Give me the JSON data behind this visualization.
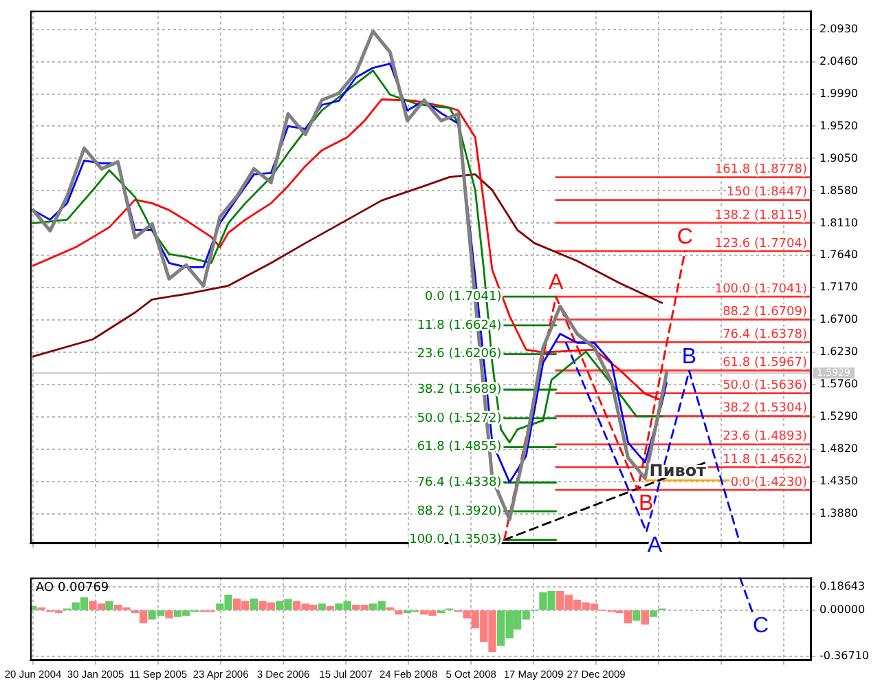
{
  "chart_data": [
    {
      "type": "line",
      "marker": "none",
      "grid": true,
      "tick_labels": "y",
      "xlim": [
        "2004-06-10",
        "2012-02-05"
      ],
      "xticks": [
        {
          "value": "2004-06-20",
          "label": null
        },
        {
          "value": "2005-01-30",
          "label": null
        },
        {
          "value": "2005-09-11",
          "label": null
        },
        {
          "value": "2006-04-23",
          "label": null
        },
        {
          "value": "2006-12-03",
          "label": null
        },
        {
          "value": "2007-07-15",
          "label": null
        },
        {
          "value": "2008-02-24",
          "label": null
        },
        {
          "value": "2008-10-05",
          "label": null
        },
        {
          "value": "2009-05-17",
          "label": null
        },
        {
          "value": "2009-12-27",
          "label": null
        },
        {
          "value": "2010-08-08",
          "label": null
        },
        {
          "value": "2011-03-20",
          "label": null
        },
        {
          "value": "2011-10-30",
          "label": null
        }
      ],
      "ylim": [
        1.345,
        2.12
      ],
      "yticks": [
        {
          "value": 2.093,
          "label": "2.0930"
        },
        {
          "value": 2.046,
          "label": "2.0460"
        },
        {
          "value": 1.999,
          "label": "1.9990"
        },
        {
          "value": 1.952,
          "label": "1.9520"
        },
        {
          "value": 1.905,
          "label": "1.9050"
        },
        {
          "value": 1.858,
          "label": "1.8580"
        },
        {
          "value": 1.811,
          "label": "1.8110"
        },
        {
          "value": 1.764,
          "label": "1.7640"
        },
        {
          "value": 1.717,
          "label": "1.7170"
        },
        {
          "value": 1.67,
          "label": "1.6700"
        },
        {
          "value": 1.623,
          "label": "1.6230"
        },
        {
          "value": 1.576,
          "label": "1.5760"
        },
        {
          "value": 1.529,
          "label": "1.5290"
        },
        {
          "value": 1.482,
          "label": "1.4820"
        },
        {
          "value": 1.435,
          "label": "1.4350"
        },
        {
          "value": 1.388,
          "label": "1.3880"
        }
      ],
      "x": [
        "2004-06-20",
        "2004-08-20",
        "2004-10-20",
        "2004-12-20",
        "2005-02-20",
        "2005-04-20",
        "2005-06-20",
        "2005-08-20",
        "2005-10-20",
        "2005-12-20",
        "2006-02-20",
        "2006-04-20",
        "2006-06-20",
        "2006-08-20",
        "2006-10-20",
        "2006-12-20",
        "2007-02-20",
        "2007-04-20",
        "2007-06-20",
        "2007-08-20",
        "2007-10-20",
        "2007-12-20",
        "2008-02-20",
        "2008-04-20",
        "2008-06-20",
        "2008-08-20",
        "2008-10-20",
        "2008-12-20",
        "2009-02-20",
        "2009-04-20",
        "2009-06-20",
        "2009-08-20",
        "2009-10-20",
        "2009-12-20",
        "2010-02-20",
        "2010-04-20",
        "2010-06-20",
        "2010-08-20",
        "2010-09-05"
      ],
      "series": [
        {
          "color": "#808080",
          "values": [
            1.83,
            1.8,
            1.85,
            1.92,
            1.89,
            1.9,
            1.79,
            1.81,
            1.73,
            1.75,
            1.72,
            1.82,
            1.85,
            1.89,
            1.87,
            1.97,
            1.94,
            1.99,
            2.0,
            2.03,
            2.09,
            2.06,
            1.96,
            1.99,
            1.96,
            1.97,
            1.7,
            1.44,
            1.38,
            1.49,
            1.63,
            1.69,
            1.65,
            1.63,
            1.58,
            1.47,
            1.44,
            1.56,
            1.5929
          ]
        },
        {
          "color": "#0000ff",
          "values": [
            1.83,
            1.816,
            1.84,
            1.902,
            1.898,
            1.898,
            1.801,
            1.801,
            1.753,
            1.747,
            1.747,
            1.811,
            1.847,
            1.882,
            1.884,
            1.952,
            1.948,
            1.983,
            1.989,
            2.023,
            2.037,
            2.043,
            1.975,
            1.989,
            1.971,
            1.956,
            1.733,
            1.492,
            1.434,
            1.472,
            1.608,
            1.65,
            1.637,
            1.637,
            1.608,
            1.492,
            1.463,
            1.55,
            1.579
          ]
        },
        {
          "color": "#008000",
          "x": [
            "2004-06-20",
            "2004-10-20",
            "2005-01-20",
            "2005-03-20",
            "2005-06-20",
            "2005-08-20",
            "2005-10-20",
            "2005-12-20",
            "2006-03-20",
            "2006-05-20",
            "2006-07-20",
            "2006-10-20",
            "2006-12-20",
            "2007-02-20",
            "2007-04-20",
            "2007-07-20",
            "2007-10-20",
            "2007-12-20",
            "2008-03-20",
            "2008-05-20",
            "2008-07-20",
            "2008-08-20",
            "2008-10-20",
            "2008-11-20",
            "2008-12-20",
            "2009-01-20",
            "2009-02-20",
            "2009-03-20",
            "2009-06-20",
            "2009-07-20",
            "2009-11-20",
            "2010-03-20",
            "2010-05-20",
            "2010-08-20"
          ],
          "values": [
            1.811,
            1.816,
            1.859,
            1.888,
            1.849,
            1.801,
            1.766,
            1.762,
            1.753,
            1.811,
            1.84,
            1.878,
            1.913,
            1.946,
            1.975,
            2.004,
            2.033,
            1.998,
            1.985,
            1.981,
            1.979,
            1.956,
            1.859,
            1.743,
            1.608,
            1.511,
            1.492,
            1.511,
            1.524,
            1.583,
            1.624,
            1.563,
            1.53,
            1.53
          ]
        },
        {
          "color": "#ff0000",
          "x": [
            "2004-06-20",
            "2004-11-20",
            "2005-03-20",
            "2005-06-20",
            "2005-08-20",
            "2005-10-20",
            "2005-12-20",
            "2006-03-20",
            "2006-04-20",
            "2006-05-20",
            "2006-07-20",
            "2006-10-20",
            "2006-12-20",
            "2007-02-20",
            "2007-04-20",
            "2007-07-20",
            "2007-09-20",
            "2007-11-20",
            "2008-03-20",
            "2008-07-20",
            "2008-08-20",
            "2008-10-20",
            "2008-11-20",
            "2008-12-20",
            "2009-02-20",
            "2009-04-20",
            "2009-06-20",
            "2009-12-20",
            "2010-03-20",
            "2010-06-20",
            "2010-08-20"
          ],
          "values": [
            1.749,
            1.776,
            1.805,
            1.845,
            1.84,
            1.83,
            1.815,
            1.791,
            1.776,
            1.797,
            1.816,
            1.84,
            1.865,
            1.894,
            1.917,
            1.936,
            1.96,
            1.991,
            1.989,
            1.979,
            1.975,
            1.936,
            1.84,
            1.743,
            1.676,
            1.627,
            1.623,
            1.627,
            1.598,
            1.563,
            1.553
          ]
        },
        {
          "color": "#800000",
          "x": [
            "2004-06-20",
            "2005-01-20",
            "2005-06-20",
            "2005-08-20",
            "2005-12-20",
            "2006-05-20",
            "2006-10-20",
            "2007-02-20",
            "2007-07-20",
            "2007-11-20",
            "2008-04-20",
            "2008-07-20",
            "2008-10-20",
            "2008-12-20",
            "2009-03-20",
            "2009-05-20",
            "2009-10-20",
            "2010-03-20",
            "2010-08-20"
          ],
          "values": [
            1.617,
            1.642,
            1.681,
            1.7,
            1.708,
            1.72,
            1.753,
            1.782,
            1.816,
            1.844,
            1.865,
            1.878,
            1.882,
            1.859,
            1.801,
            1.782,
            1.756,
            1.724,
            1.695
          ]
        },
        {
          "color": "#ff0000",
          "line_style": "dashed",
          "x": [
            "2009-02-01",
            "2009-08-05",
            "2010-05-25",
            "2010-11-10"
          ],
          "values": [
            1.3503,
            1.7041,
            1.423,
            1.7704
          ],
          "value_labels": [
            null,
            "A",
            "B",
            "C"
          ]
        },
        {
          "color": "#0000ff",
          "line_style": "dashed",
          "x": [
            "2009-09-10",
            "2010-06-25",
            "2010-11-25",
            "2011-05-26"
          ],
          "values": [
            1.637,
            1.362,
            1.596,
            1.345
          ],
          "value_labels": [
            null,
            "A",
            "B",
            null
          ]
        },
        {
          "color": "#000000",
          "line_style": "dashed",
          "x": [
            "2009-02-01",
            "2011-02-05"
          ],
          "values": [
            1.3503,
            1.465
          ]
        },
        {
          "color": "#ffa500",
          "x": [
            "2010-06-22",
            "2011-07-20"
          ],
          "values": [
            1.437,
            1.437
          ]
        },
        {
          "name": "161.8 (1.8778)",
          "color": "#ff3030",
          "x": [
            "2009-08-05",
            "2012-02-05"
          ],
          "values": [
            1.8778,
            1.8778
          ]
        },
        {
          "name": "150 (1.8447)",
          "color": "#ff3030",
          "x": [
            "2009-08-05",
            "2012-02-05"
          ],
          "values": [
            1.8447,
            1.8447
          ]
        },
        {
          "name": "138.2 (1.8115)",
          "color": "#ff3030",
          "x": [
            "2009-08-05",
            "2012-02-05"
          ],
          "values": [
            1.8115,
            1.8115
          ]
        },
        {
          "name": "123.6 (1.7704)",
          "color": "#ff3030",
          "x": [
            "2009-08-05",
            "2012-02-05"
          ],
          "values": [
            1.7704,
            1.7704
          ]
        },
        {
          "name": "100.0 (1.7041)",
          "color": "#ff3030",
          "x": [
            "2009-08-05",
            "2012-02-05"
          ],
          "values": [
            1.7041,
            1.7041
          ]
        },
        {
          "name": "88.2 (1.6709)",
          "color": "#ff3030",
          "x": [
            "2009-08-05",
            "2012-02-05"
          ],
          "values": [
            1.6709,
            1.6709
          ]
        },
        {
          "name": "76.4 (1.6378)",
          "color": "#ff3030",
          "x": [
            "2009-08-05",
            "2012-02-05"
          ],
          "values": [
            1.6378,
            1.6378
          ]
        },
        {
          "name": "61.8 (1.5967)",
          "color": "#ff3030",
          "x": [
            "2009-08-05",
            "2012-02-05"
          ],
          "values": [
            1.5967,
            1.5967
          ]
        },
        {
          "name": "50.0 (1.5636)",
          "color": "#ff3030",
          "x": [
            "2009-08-05",
            "2012-02-05"
          ],
          "values": [
            1.5636,
            1.5636
          ]
        },
        {
          "name": "38.2 (1.5304)",
          "color": "#ff3030",
          "x": [
            "2009-08-05",
            "2012-02-05"
          ],
          "values": [
            1.5304,
            1.5304
          ]
        },
        {
          "name": "23.6 (1.4893)",
          "color": "#ff3030",
          "x": [
            "2009-08-05",
            "2012-02-05"
          ],
          "values": [
            1.4893,
            1.4893
          ]
        },
        {
          "name": "11.8 (1.4562)",
          "color": "#ff3030",
          "x": [
            "2009-08-05",
            "2012-02-05"
          ],
          "values": [
            1.4562,
            1.4562
          ]
        },
        {
          "name": "0.0 (1.4230)",
          "color": "#ff3030",
          "x": [
            "2009-08-05",
            "2012-02-05"
          ],
          "values": [
            1.423,
            1.423
          ]
        },
        {
          "name": "0.0 (1.7041)",
          "color": "#008000",
          "x": [
            "2009-02-01",
            "2009-08-05"
          ],
          "values": [
            1.7041,
            1.7041
          ]
        },
        {
          "name": "11.8 (1.6624)",
          "color": "#008000",
          "x": [
            "2009-02-01",
            "2009-08-05"
          ],
          "values": [
            1.6624,
            1.6624
          ]
        },
        {
          "name": "23.6 (1.6206)",
          "color": "#008000",
          "x": [
            "2009-02-01",
            "2009-08-05"
          ],
          "values": [
            1.6206,
            1.6206
          ]
        },
        {
          "name": "38.2 (1.5689)",
          "color": "#008000",
          "x": [
            "2009-02-01",
            "2009-08-05"
          ],
          "values": [
            1.5689,
            1.5689
          ]
        },
        {
          "name": "50.0 (1.5272)",
          "color": "#008000",
          "x": [
            "2009-02-01",
            "2009-08-05"
          ],
          "values": [
            1.5272,
            1.5272
          ]
        },
        {
          "name": "61.8 (1.4855)",
          "color": "#008000",
          "x": [
            "2009-02-01",
            "2009-08-05"
          ],
          "values": [
            1.4855,
            1.4855
          ]
        },
        {
          "name": "76.4 (1.4338)",
          "color": "#008000",
          "x": [
            "2009-02-01",
            "2009-08-05"
          ],
          "values": [
            1.4338,
            1.4338
          ]
        },
        {
          "name": "88.2 (1.3920)",
          "color": "#008000",
          "x": [
            "2009-02-01",
            "2009-08-05"
          ],
          "values": [
            1.392,
            1.392
          ]
        },
        {
          "name": "100.0 (1.3503)",
          "color": "#008000",
          "x": [
            "2009-02-01",
            "2009-08-05"
          ],
          "values": [
            1.3503,
            1.3503
          ]
        }
      ],
      "ref_lines": [
        {
          "axis": "y",
          "value": 1.5929,
          "label": "1.5929",
          "color": "#c8c8c8"
        }
      ],
      "annotations": [
        {
          "text": "Пивот",
          "x": "2010-10-15",
          "y": 1.449
        }
      ]
    },
    {
      "type": "bar",
      "title": "AO 0.00769",
      "grid": true,
      "xlim": [
        "2004-06-10",
        "2012-02-05"
      ],
      "xticks": [
        {
          "value": "2004-06-20",
          "label": "20 Jun 2004"
        },
        {
          "value": "2005-01-30",
          "label": "30 Jan 2005"
        },
        {
          "value": "2005-09-11",
          "label": "11 Sep 2005"
        },
        {
          "value": "2006-04-23",
          "label": "23 Apr 2006"
        },
        {
          "value": "2006-12-03",
          "label": "3 Dec 2006"
        },
        {
          "value": "2007-07-15",
          "label": "15 Jul 2007"
        },
        {
          "value": "2008-02-24",
          "label": "24 Feb 2008"
        },
        {
          "value": "2008-10-05",
          "label": "5 Oct 2008"
        },
        {
          "value": "2009-05-17",
          "label": "17 May 2009"
        },
        {
          "value": "2009-12-27",
          "label": "27 Dec 2009"
        },
        {
          "value": "2010-08-08",
          "label": null
        },
        {
          "value": "2011-03-20",
          "label": null
        },
        {
          "value": "2011-10-30",
          "label": null
        }
      ],
      "ylim": [
        -0.4,
        0.26
      ],
      "yticks": [
        {
          "value": 0.18643,
          "label": "0.18643"
        },
        {
          "value": 0,
          "label": "0.00000"
        },
        {
          "value": -0.3671,
          "label": "-0.36710"
        }
      ],
      "series": [
        {
          "x": [
            "2004-06-20",
            "2004-07-20",
            "2004-08-20",
            "2004-09-20",
            "2004-10-20",
            "2004-11-20",
            "2004-12-20",
            "2005-01-20",
            "2005-02-20",
            "2005-03-20",
            "2005-04-20",
            "2005-05-20",
            "2005-06-20",
            "2005-07-20",
            "2005-08-20",
            "2005-09-20",
            "2005-10-20",
            "2005-11-20",
            "2005-12-20",
            "2006-01-20",
            "2006-02-20",
            "2006-03-20",
            "2006-04-20",
            "2006-05-20",
            "2006-06-20",
            "2006-07-20",
            "2006-08-20",
            "2006-09-20",
            "2006-10-20",
            "2006-11-20",
            "2006-12-20",
            "2007-01-20",
            "2007-02-20",
            "2007-03-20",
            "2007-04-20",
            "2007-05-20",
            "2007-06-20",
            "2007-07-20",
            "2007-08-20",
            "2007-09-20",
            "2007-10-20",
            "2007-11-20",
            "2007-12-20",
            "2008-01-20",
            "2008-02-20",
            "2008-03-20",
            "2008-04-20",
            "2008-05-20",
            "2008-06-20",
            "2008-07-20",
            "2008-08-20",
            "2008-09-20",
            "2008-10-20",
            "2008-11-20",
            "2008-12-20",
            "2009-01-20",
            "2009-02-20",
            "2009-03-20",
            "2009-04-20",
            "2009-05-20",
            "2009-06-20",
            "2009-07-20",
            "2009-08-20",
            "2009-09-20",
            "2009-10-20",
            "2009-11-20",
            "2009-12-20",
            "2010-01-20",
            "2010-02-20",
            "2010-03-20",
            "2010-04-20",
            "2010-05-20",
            "2010-06-20",
            "2010-07-20",
            "2010-08-20"
          ],
          "values": [
            0.03,
            0.02,
            -0.01,
            -0.02,
            0.01,
            0.06,
            0.1,
            0.07,
            0.05,
            0.07,
            0.04,
            0.02,
            -0.02,
            -0.1,
            -0.07,
            -0.04,
            -0.06,
            -0.05,
            -0.04,
            -0.01,
            -0.01,
            -0.01,
            0.05,
            0.12,
            0.09,
            0.07,
            0.09,
            0.07,
            0.06,
            0.07,
            0.085,
            0.07,
            0.05,
            0.04,
            0.05,
            0.03,
            0.05,
            0.07,
            0.04,
            0.04,
            0.05,
            0.07,
            0.02,
            -0.03,
            -0.02,
            -0.01,
            -0.03,
            -0.04,
            -0.02,
            0.01,
            -0.01,
            -0.06,
            -0.14,
            -0.25,
            -0.33,
            -0.28,
            -0.22,
            -0.15,
            -0.07,
            0.0,
            0.14,
            0.15,
            0.15,
            0.12,
            0.08,
            0.06,
            0.05,
            0.0,
            -0.01,
            -0.02,
            -0.1,
            -0.08,
            -0.11,
            -0.05,
            0.01
          ],
          "colors": [
            "#66cc66",
            "#ff7f7f",
            "#ff7f7f",
            "#ff7f7f",
            "#66cc66",
            "#66cc66",
            "#66cc66",
            "#ff7f7f",
            "#ff7f7f",
            "#66cc66",
            "#ff7f7f",
            "#ff7f7f",
            "#ff7f7f",
            "#ff7f7f",
            "#66cc66",
            "#66cc66",
            "#ff7f7f",
            "#66cc66",
            "#66cc66",
            "#66cc66",
            "#ff7f7f",
            "#ff7f7f",
            "#66cc66",
            "#66cc66",
            "#ff7f7f",
            "#ff7f7f",
            "#66cc66",
            "#ff7f7f",
            "#ff7f7f",
            "#66cc66",
            "#66cc66",
            "#ff7f7f",
            "#ff7f7f",
            "#ff7f7f",
            "#66cc66",
            "#ff7f7f",
            "#66cc66",
            "#66cc66",
            "#ff7f7f",
            "#ff7f7f",
            "#66cc66",
            "#66cc66",
            "#ff7f7f",
            "#ff7f7f",
            "#66cc66",
            "#66cc66",
            "#ff7f7f",
            "#ff7f7f",
            "#66cc66",
            "#66cc66",
            "#ff7f7f",
            "#ff7f7f",
            "#ff7f7f",
            "#ff7f7f",
            "#ff7f7f",
            "#66cc66",
            "#66cc66",
            "#66cc66",
            "#66cc66",
            "#66cc66",
            "#66cc66",
            "#66cc66",
            "#ff7f7f",
            "#ff7f7f",
            "#ff7f7f",
            "#ff7f7f",
            "#ff7f7f",
            "#ff7f7f",
            "#ff7f7f",
            "#ff7f7f",
            "#ff7f7f",
            "#66cc66",
            "#ff7f7f",
            "#66cc66",
            "#66cc66"
          ]
        },
        {
          "type": "line",
          "color": "#0000ff",
          "line_style": "dashed",
          "x": [
            "2011-05-26",
            "2011-07-10"
          ],
          "values": [
            0.26,
            -0.02
          ],
          "value_labels": [
            null,
            "C"
          ]
        }
      ]
    }
  ]
}
